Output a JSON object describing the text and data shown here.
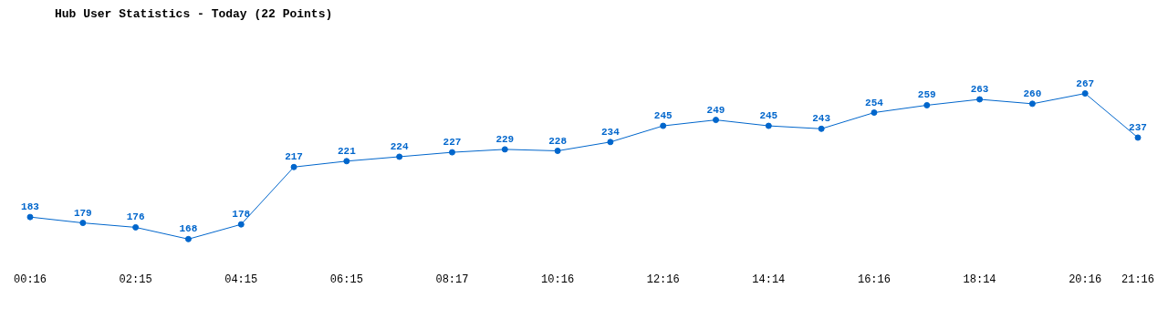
{
  "chart_data": {
    "type": "line",
    "title": "Hub User Statistics - Today (22 Points)",
    "categories": [
      "00:16",
      null,
      "02:15",
      null,
      "04:15",
      null,
      "06:15",
      null,
      "08:17",
      null,
      "10:16",
      null,
      "12:16",
      null,
      "14:14",
      null,
      "16:16",
      null,
      "18:14",
      null,
      "20:16",
      "21:16"
    ],
    "series": [
      {
        "color": "#0066cc",
        "values": [
          183,
          179,
          176,
          168,
          178,
          217,
          221,
          224,
          227,
          229,
          228,
          234,
          245,
          249,
          245,
          243,
          254,
          259,
          263,
          260,
          267,
          237
        ]
      }
    ],
    "data_labels": true,
    "marker": "circle",
    "line_style": "solid"
  }
}
